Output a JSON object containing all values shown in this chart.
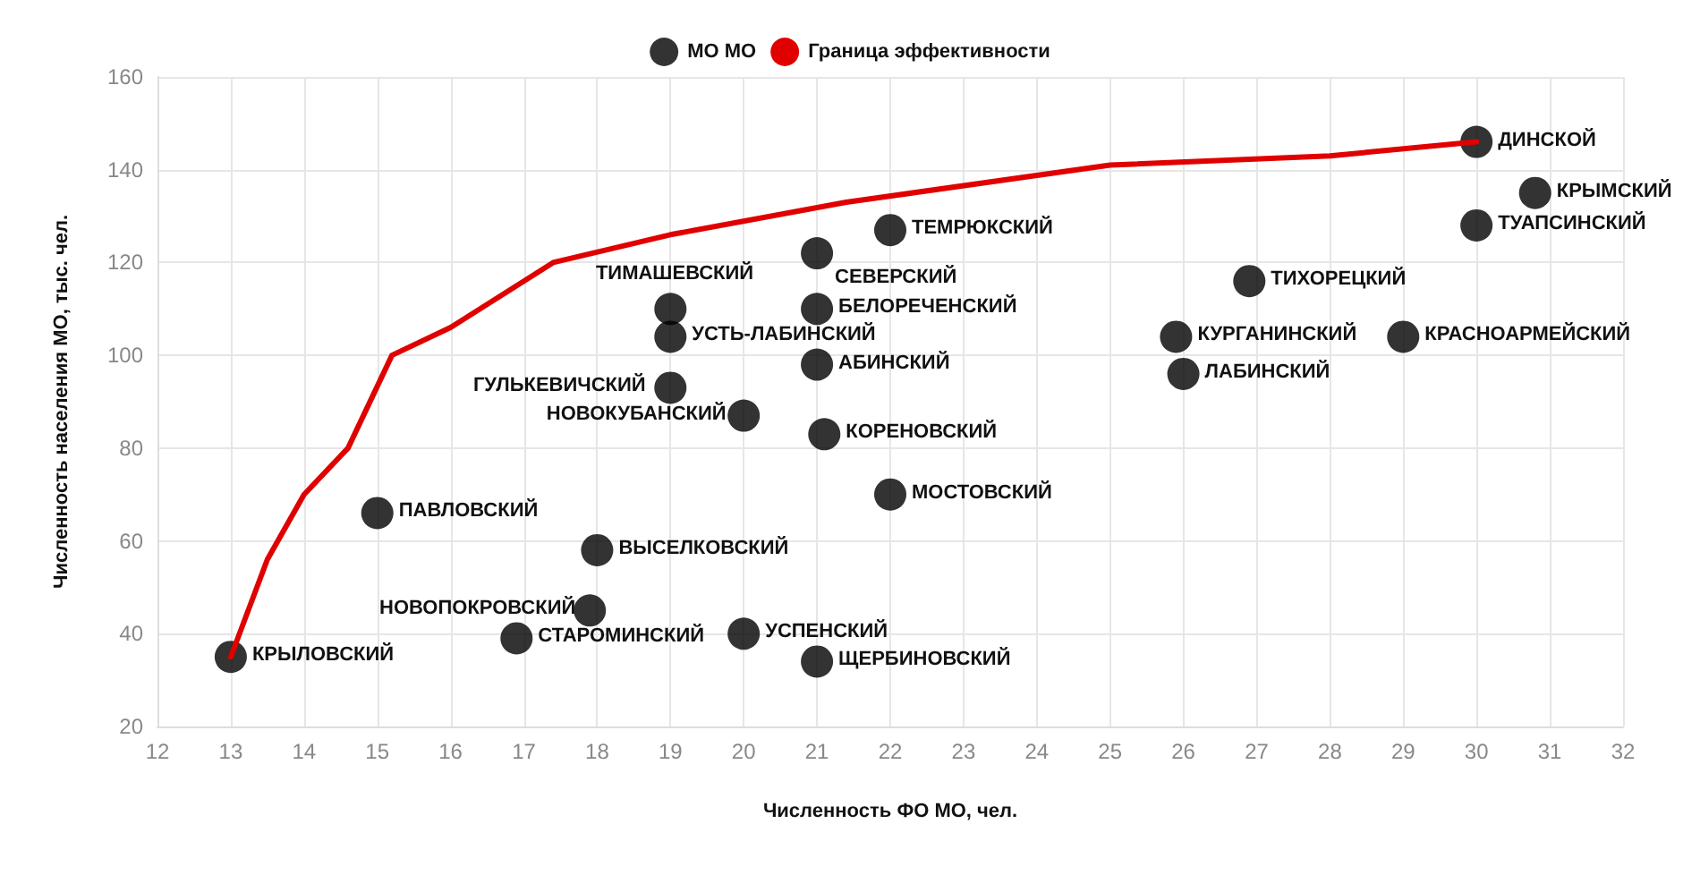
{
  "chart_data": {
    "type": "scatter",
    "xlabel": "Численность ФО МО, чел.",
    "ylabel": "Численность населения МО, тыс. чел.",
    "xlim": [
      12,
      32
    ],
    "xticks": [
      12,
      13,
      14,
      15,
      16,
      17,
      18,
      19,
      20,
      21,
      22,
      23,
      24,
      25,
      26,
      27,
      28,
      29,
      30,
      31,
      32
    ],
    "ylim": [
      20,
      160
    ],
    "yticks": [
      20,
      40,
      60,
      80,
      100,
      120,
      140,
      160
    ],
    "grid": true,
    "legend": "top",
    "marker": "circle",
    "series": [
      {
        "name": "МО МО",
        "color": "#000000",
        "x": [
          13,
          15,
          18,
          17.9,
          16.9,
          20,
          21,
          22,
          21.1,
          20,
          19,
          19,
          19,
          21,
          21,
          21,
          22,
          26.9,
          25.9,
          26,
          29,
          30,
          30.8,
          30
        ],
        "values": [
          35,
          66,
          58,
          45,
          39,
          40,
          34,
          70,
          83,
          87,
          93,
          104,
          110,
          98,
          110,
          122,
          127,
          116,
          104,
          96,
          104,
          146,
          135,
          128
        ]
      },
      {
        "name": "Граница эффективности",
        "type": "line",
        "color": "#e00000",
        "line_style": "solid",
        "marker": "none",
        "x": [
          13,
          13.5,
          14,
          14.6,
          15.2,
          16,
          17.4,
          19,
          21.4,
          25,
          28,
          30
        ],
        "values": [
          35,
          56,
          70,
          80,
          100,
          106,
          120,
          126,
          133,
          141,
          143,
          146
        ]
      }
    ],
    "annotations": [
      {
        "text": "КРЫЛОВСКИЙ",
        "x": 13,
        "y": 35
      },
      {
        "text": "ПАВЛОВСКИЙ",
        "x": 15,
        "y": 66
      },
      {
        "text": "ВЫСЕЛКОВСКИЙ",
        "x": 18,
        "y": 58
      },
      {
        "text": "НОВОПОКРОВСКИЙ",
        "x": 17.9,
        "y": 45
      },
      {
        "text": "СТАРОМИНСКИЙ",
        "x": 16.9,
        "y": 39
      },
      {
        "text": "УСПЕНСКИЙ",
        "x": 20,
        "y": 40
      },
      {
        "text": "ЩЕРБИНОВСКИЙ",
        "x": 21,
        "y": 34
      },
      {
        "text": "МОСТОВСКИЙ",
        "x": 22,
        "y": 70
      },
      {
        "text": "КОРЕНОВСКИЙ",
        "x": 21.1,
        "y": 83
      },
      {
        "text": "НОВОКУБАНСКИЙ",
        "x": 20,
        "y": 87
      },
      {
        "text": "ГУЛЬКЕВИЧСКИЙ",
        "x": 19,
        "y": 93
      },
      {
        "text": "УСТЬ-ЛАБИНСКИЙ",
        "x": 19,
        "y": 104
      },
      {
        "text": "ТИМАШЕВСКИЙ",
        "x": 19,
        "y": 110
      },
      {
        "text": "АБИНСКИЙ",
        "x": 21,
        "y": 98
      },
      {
        "text": "БЕЛОРЕЧЕНСКИЙ",
        "x": 21,
        "y": 110
      },
      {
        "text": "СЕВЕРСКИЙ",
        "x": 21,
        "y": 122
      },
      {
        "text": "ТЕМРЮКСКИЙ",
        "x": 22,
        "y": 127
      },
      {
        "text": "ТИХОРЕЦКИЙ",
        "x": 26.9,
        "y": 116
      },
      {
        "text": "КУРГАНИНСКИЙ",
        "x": 25.9,
        "y": 104
      },
      {
        "text": "ЛАБИНСКИЙ",
        "x": 26,
        "y": 96
      },
      {
        "text": "КРАСНОАРМЕЙСКИЙ",
        "x": 29,
        "y": 104
      },
      {
        "text": "ДИНСКОЙ",
        "x": 30,
        "y": 146
      },
      {
        "text": "КРЫМСКИЙ",
        "x": 30.8,
        "y": 135
      },
      {
        "text": "ТУАПСИНСКИЙ",
        "x": 30,
        "y": 128
      }
    ]
  }
}
